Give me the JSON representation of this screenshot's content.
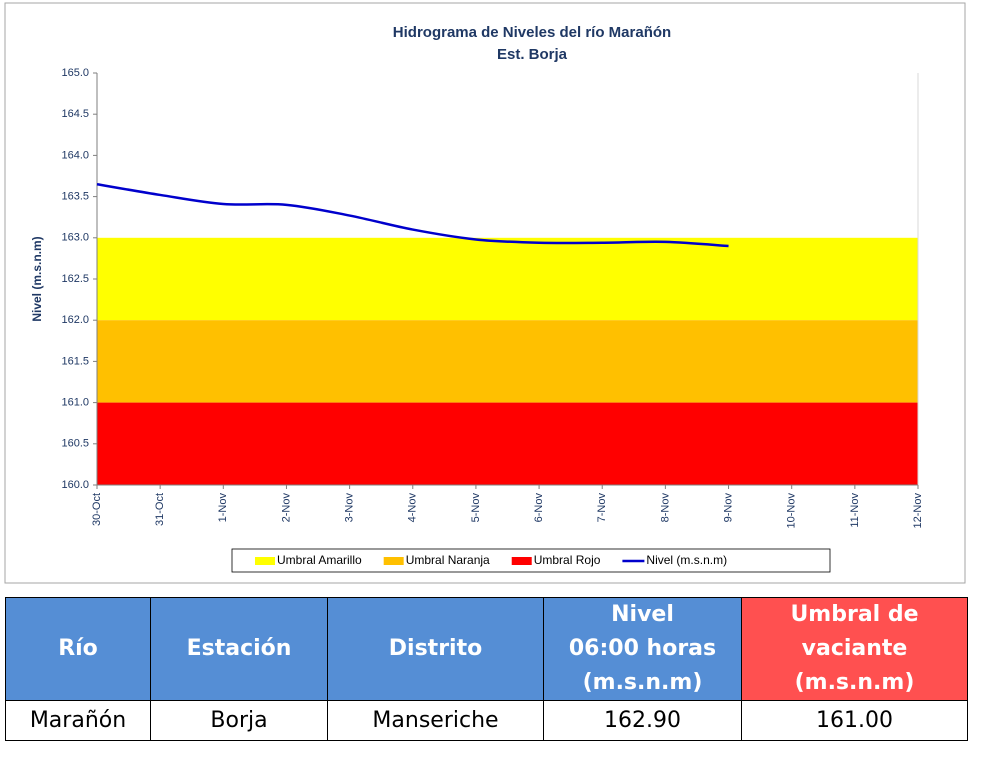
{
  "chart_data": {
    "type": "line",
    "title": [
      "Hidrograma de Niveles del río Marañón",
      "Est. Borja"
    ],
    "y_label": "Nivel (m.s.n.m)",
    "categories": [
      "30-Oct",
      "31-Oct",
      "1-Nov",
      "2-Nov",
      "3-Nov",
      "4-Nov",
      "5-Nov",
      "6-Nov",
      "7-Nov",
      "8-Nov",
      "9-Nov",
      "10-Nov",
      "11-Nov",
      "12-Nov"
    ],
    "bands": [
      {
        "name": "Umbral Amarillo",
        "color": "#ffff00",
        "threshold": 163
      },
      {
        "name": "Umbral Naranja",
        "color": "#ffc000",
        "threshold": 162
      },
      {
        "name": "Umbral Rojo",
        "color": "#ff0000",
        "threshold": 161
      }
    ],
    "series": [
      {
        "name": "Nivel (m.s.n.m)",
        "color": "#0000cc",
        "values": [
          163.65,
          163.52,
          163.41,
          163.4,
          163.27,
          163.1,
          162.98,
          162.94,
          162.94,
          162.95,
          162.9,
          null,
          null,
          null
        ]
      }
    ],
    "ylim": [
      160,
      165
    ],
    "yticks": [
      {
        "value": 160,
        "label": "160.0"
      },
      160.5,
      {
        "value": 161,
        "label": "161.0"
      },
      161.5,
      {
        "value": 162,
        "label": "162.0"
      },
      162.5,
      {
        "value": 163,
        "label": "163.0"
      },
      163.5,
      {
        "value": 164,
        "label": "164.0"
      },
      164.5,
      {
        "value": 165,
        "label": "165.0"
      }
    ]
  },
  "table": {
    "header": [
      [
        "Río"
      ],
      [
        "Estación"
      ],
      [
        "Distrito"
      ],
      [
        "Nivel",
        "06:00 horas",
        "(m.s.n.m)"
      ],
      [
        "Umbral de",
        "vaciante",
        "(m.s.n.m)"
      ]
    ],
    "rows": [
      [
        "Marañón",
        "Borja",
        "Manseriche",
        "162.90",
        "161.00"
      ]
    ]
  }
}
